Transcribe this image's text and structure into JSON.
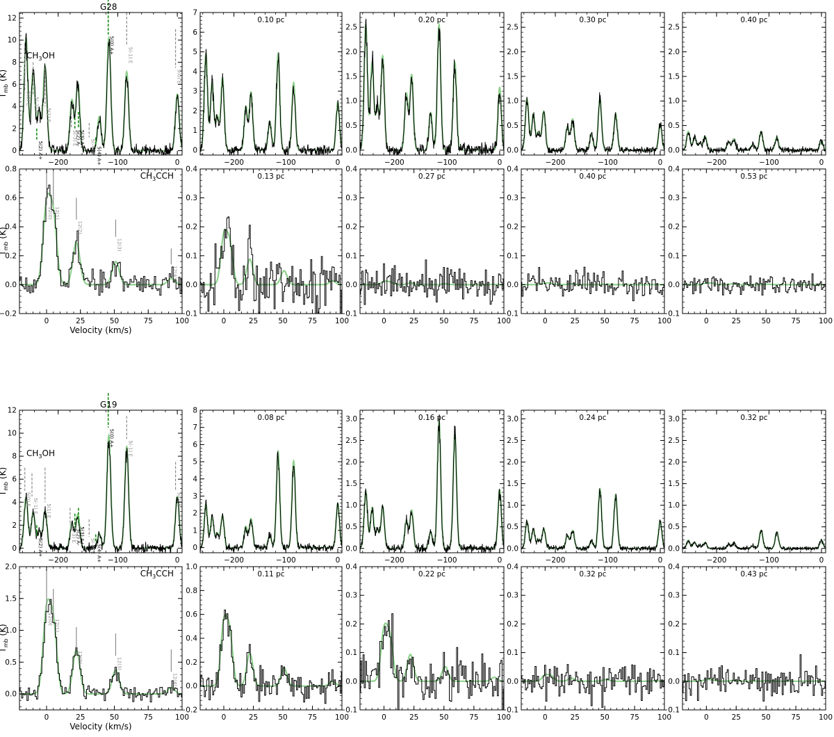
{
  "colors": {
    "obs": "#000000",
    "model": "#4caf50",
    "model_light": "#8fd18f",
    "marker_grey": "#8c8c8c",
    "marker_green": "#1a8c1a"
  },
  "figure": {
    "ylabel": "T_mb (K)",
    "xlabel": "Velocity (km/s)"
  },
  "chart_data": [
    {
      "source": "G28",
      "rows": [
        {
          "type": "line",
          "molecule": "CH3OH",
          "molecule_label": {
            "main": "CH",
            "sub": "3",
            "rest": "OH"
          },
          "xlim": [
            -265,
            8
          ],
          "xticks": [
            -200,
            -100,
            0
          ],
          "lines": [
            [
              -254,
              1.0
            ],
            [
              -242,
              0.7
            ],
            [
              -232,
              0.35
            ],
            [
              -222,
              0.75
            ],
            [
              -177,
              0.45
            ],
            [
              -167,
              0.6
            ],
            [
              -131,
              0.3
            ],
            [
              -115,
              1.0
            ],
            [
              -85,
              0.7
            ],
            [
              0,
              0.5
            ]
          ],
          "panels": [
            {
              "title": "",
              "ylim": [
                -0.4,
                12.5
              ],
              "yticks": [
                0,
                2,
                4,
                6,
                8,
                10,
                12
              ],
              "peak": 10.2,
              "noise": 0.25,
              "markers": [
                {
                  "v": -256,
                  "top": 9.5,
                  "bot": 5.5,
                  "color": "grey",
                  "dashed": true,
                  "text": "5(0) E"
                },
                {
                  "v": -242,
                  "top": 8.0,
                  "bot": 5.0,
                  "color": "grey",
                  "dashed": true,
                  "text": "5(-1) E"
                },
                {
                  "v": -236,
                  "top": 2.0,
                  "bot": 1.0,
                  "color": "green",
                  "dashed": true,
                  "text": "5(2) A+"
                },
                {
                  "v": -222,
                  "top": 7.5,
                  "bot": 4.0,
                  "color": "grey",
                  "dashed": true,
                  "text": "5(1) E"
                },
                {
                  "v": -178,
                  "top": 3.5,
                  "bot": 2.0,
                  "color": "grey",
                  "dashed": true,
                  "text": "5(-3) E"
                },
                {
                  "v": -172,
                  "top": 3.0,
                  "bot": 2.0,
                  "color": "green",
                  "dashed": true,
                  "text": "5(2) A-"
                },
                {
                  "v": -166,
                  "top": 3.5,
                  "bot": 2.0,
                  "color": "green",
                  "dashed": true,
                  "text": "5(3) A+"
                },
                {
                  "v": -148,
                  "top": 2.5,
                  "bot": 1.2,
                  "color": "grey",
                  "dashed": true,
                  "text": "5(-4) E"
                },
                {
                  "v": -137,
                  "top": 1.2,
                  "bot": 0.5,
                  "color": "green",
                  "dashed": true,
                  "text": "5(4) A+"
                },
                {
                  "v": -116,
                  "top": 14.5,
                  "bot": 10.5,
                  "color": "green",
                  "dashed": true,
                  "text": "5(0) A+"
                },
                {
                  "v": -85,
                  "top": 12.5,
                  "bot": 9.5,
                  "color": "grey",
                  "dashed": true,
                  "text": "5(-1) E"
                },
                {
                  "v": -3,
                  "top": 11.0,
                  "bot": 7.5,
                  "color": "grey",
                  "dashed": true,
                  "text": "5(0) E"
                }
              ]
            },
            {
              "title": "0.10 pc",
              "ylim": [
                -0.25,
                7
              ],
              "yticks": [
                0,
                1,
                2,
                3,
                4,
                5,
                6,
                7
              ],
              "peak": 4.9,
              "noise": 0.12
            },
            {
              "title": "0.20 pc",
              "ylim": [
                -0.1,
                2.8
              ],
              "yticks": [
                0,
                0.5,
                1.0,
                1.5,
                2.0,
                2.5
              ],
              "peak": 2.55,
              "noise": 0.07
            },
            {
              "title": "0.30 pc",
              "ylim": [
                -0.1,
                2.8
              ],
              "yticks": [
                0,
                0.5,
                1.0,
                1.5,
                2.0,
                2.5
              ],
              "peak": 1.05,
              "noise": 0.035
            },
            {
              "title": "0.40 pc",
              "ylim": [
                -0.1,
                2.8
              ],
              "yticks": [
                0,
                0.5,
                1.0,
                1.5,
                2.0,
                2.5
              ],
              "peak": 0.38,
              "noise": 0.03
            }
          ]
        },
        {
          "type": "step",
          "molecule": "CH3CCH",
          "molecule_label": {
            "main": "CH",
            "sub": "3",
            "rest": "CCH"
          },
          "xlim": [
            -20,
            100
          ],
          "xticks": [
            0,
            25,
            50,
            75,
            100
          ],
          "lines": [
            [
              0,
              1.0
            ],
            [
              5,
              0.85
            ],
            [
              22,
              0.55
            ],
            [
              51,
              0.3
            ],
            [
              92,
              0.08
            ]
          ],
          "panels": [
            {
              "title": "",
              "ylim": [
                -0.2,
                0.8
              ],
              "yticks": [
                -0.2,
                0.0,
                0.2,
                0.4,
                0.6,
                0.8
              ],
              "peak": 0.53,
              "noise": 0.04,
              "markers": [
                {
                  "v": 0,
                  "top": 0.8,
                  "bot": 0.55,
                  "color": "grey",
                  "dashed": false,
                  "text": "12(0)"
                },
                {
                  "v": 5,
                  "top": 0.8,
                  "bot": 0.55,
                  "color": "grey",
                  "dashed": false,
                  "text": "12(1)"
                },
                {
                  "v": 22,
                  "top": 0.6,
                  "bot": 0.45,
                  "color": "grey",
                  "dashed": false,
                  "text": "12(2)"
                },
                {
                  "v": 51,
                  "top": 0.45,
                  "bot": 0.33,
                  "color": "grey",
                  "dashed": false,
                  "text": "12(3)"
                },
                {
                  "v": 92,
                  "top": 0.25,
                  "bot": 0.14,
                  "color": "grey",
                  "dashed": false,
                  "text": "12(4)"
                }
              ]
            },
            {
              "title": "0.13 pc",
              "ylim": [
                -0.1,
                0.4
              ],
              "yticks": [
                -0.1,
                0.0,
                0.1,
                0.2,
                0.3,
                0.4
              ],
              "peak": 0.16,
              "noise": 0.05
            },
            {
              "title": "0.27 pc",
              "ylim": [
                -0.1,
                0.4
              ],
              "yticks": [
                -0.1,
                0.0,
                0.1,
                0.2,
                0.3,
                0.4
              ],
              "peak": 0.01,
              "noise": 0.03
            },
            {
              "title": "0.40 pc",
              "ylim": [
                -0.1,
                0.4
              ],
              "yticks": [
                -0.1,
                0.0,
                0.1,
                0.2,
                0.3,
                0.4
              ],
              "peak": 0.005,
              "noise": 0.022
            },
            {
              "title": "0.53 pc",
              "ylim": [
                -0.1,
                0.4
              ],
              "yticks": [
                -0.1,
                0.0,
                0.1,
                0.2,
                0.3,
                0.4
              ],
              "peak": 0.005,
              "noise": 0.018
            }
          ]
        }
      ]
    },
    {
      "source": "G19",
      "rows": [
        {
          "type": "line",
          "molecule": "CH3OH",
          "molecule_label": {
            "main": "CH",
            "sub": "3",
            "rest": "OH"
          },
          "xlim": [
            -265,
            8
          ],
          "xticks": [
            -200,
            -100,
            0
          ],
          "lines": [
            [
              -254,
              0.45
            ],
            [
              -242,
              0.32
            ],
            [
              -232,
              0.15
            ],
            [
              -222,
              0.33
            ],
            [
              -177,
              0.22
            ],
            [
              -167,
              0.3
            ],
            [
              -131,
              0.13
            ],
            [
              -115,
              1.0
            ],
            [
              -85,
              0.9
            ],
            [
              0,
              0.46
            ]
          ],
          "panels": [
            {
              "title": "",
              "ylim": [
                -0.4,
                12.0
              ],
              "yticks": [
                0,
                2,
                4,
                6,
                8,
                10,
                12
              ],
              "peak": 9.8,
              "noise": 0.2,
              "markers": [
                {
                  "v": -256,
                  "top": 7.0,
                  "bot": 5.0,
                  "color": "grey",
                  "dashed": true,
                  "text": "5(0) E"
                },
                {
                  "v": -244,
                  "top": 6.5,
                  "bot": 4.5,
                  "color": "grey",
                  "dashed": true,
                  "text": "5(-1) E"
                },
                {
                  "v": -236,
                  "top": 2.0,
                  "bot": 1.0,
                  "color": "green",
                  "dashed": true,
                  "text": "5(2) A+"
                },
                {
                  "v": -222,
                  "top": 7.0,
                  "bot": 4.0,
                  "color": "grey",
                  "dashed": true,
                  "text": "5(1) E"
                },
                {
                  "v": -180,
                  "top": 3.5,
                  "bot": 2.0,
                  "color": "grey",
                  "dashed": true,
                  "text": "5(-3) E"
                },
                {
                  "v": -172,
                  "top": 3.0,
                  "bot": 1.8,
                  "color": "green",
                  "dashed": true,
                  "text": "5(2) A-"
                },
                {
                  "v": -166,
                  "top": 3.5,
                  "bot": 2.0,
                  "color": "green",
                  "dashed": true,
                  "text": "5(3) A+"
                },
                {
                  "v": -148,
                  "top": 2.5,
                  "bot": 1.0,
                  "color": "grey",
                  "dashed": true,
                  "text": "5(-4) E"
                },
                {
                  "v": -137,
                  "top": 1.2,
                  "bot": 0.5,
                  "color": "green",
                  "dashed": true,
                  "text": "5(4) A+"
                },
                {
                  "v": -116,
                  "top": 13.5,
                  "bot": 10.5,
                  "color": "green",
                  "dashed": true,
                  "text": "5(0) A+"
                },
                {
                  "v": -85,
                  "top": 11.5,
                  "bot": 9.5,
                  "color": "grey",
                  "dashed": true,
                  "text": "5(-1) E"
                },
                {
                  "v": -3,
                  "top": 7.5,
                  "bot": 5.0,
                  "color": "grey",
                  "dashed": true,
                  "text": "5(0) E"
                }
              ]
            },
            {
              "title": "0.08 pc",
              "ylim": [
                -0.3,
                8
              ],
              "yticks": [
                0,
                1,
                2,
                3,
                4,
                5,
                6,
                7,
                8
              ],
              "peak": 5.6,
              "noise": 0.1
            },
            {
              "title": "0.16 pc",
              "ylim": [
                -0.1,
                3.2
              ],
              "yticks": [
                0,
                0.5,
                1.0,
                1.5,
                2.0,
                2.5,
                3.0
              ],
              "peak": 2.95,
              "noise": 0.05
            },
            {
              "title": "0.24 pc",
              "ylim": [
                -0.1,
                3.2
              ],
              "yticks": [
                0,
                0.5,
                1.0,
                1.5,
                2.0,
                2.5,
                3.0
              ],
              "peak": 1.38,
              "noise": 0.03
            },
            {
              "title": "0.32 pc",
              "ylim": [
                -0.1,
                3.2
              ],
              "yticks": [
                0,
                0.5,
                1.0,
                1.5,
                2.0,
                2.5,
                3.0
              ],
              "peak": 0.42,
              "noise": 0.02
            }
          ]
        },
        {
          "type": "step",
          "molecule": "CH3CCH",
          "molecule_label": {
            "main": "CH",
            "sub": "3",
            "rest": "CCH"
          },
          "xlim": [
            -20,
            100
          ],
          "xticks": [
            0,
            25,
            50,
            75,
            100
          ],
          "lines": [
            [
              0,
              1.0
            ],
            [
              5,
              0.85
            ],
            [
              22,
              0.55
            ],
            [
              51,
              0.3
            ],
            [
              92,
              0.08
            ]
          ],
          "panels": [
            {
              "title": "",
              "ylim": [
                -0.25,
                2.0
              ],
              "yticks": [
                0.0,
                0.5,
                1.0,
                1.5,
                2.0
              ],
              "peak": 1.25,
              "noise": 0.06,
              "markers": [
                {
                  "v": 0,
                  "top": 1.95,
                  "bot": 1.3,
                  "color": "grey",
                  "dashed": false,
                  "text": "12(0)"
                },
                {
                  "v": 5,
                  "top": 1.65,
                  "bot": 1.2,
                  "color": "grey",
                  "dashed": false,
                  "text": "12(1)"
                },
                {
                  "v": 22,
                  "top": 1.05,
                  "bot": 0.7,
                  "color": "grey",
                  "dashed": false,
                  "text": "12(2)"
                },
                {
                  "v": 51,
                  "top": 0.95,
                  "bot": 0.6,
                  "color": "grey",
                  "dashed": false,
                  "text": "12(3)"
                },
                {
                  "v": 92,
                  "top": 0.7,
                  "bot": 0.35,
                  "color": "grey",
                  "dashed": false,
                  "text": "12(4)"
                }
              ]
            },
            {
              "title": "0.11 pc",
              "ylim": [
                -0.2,
                1.0
              ],
              "yticks": [
                -0.2,
                0.0,
                0.2,
                0.4,
                0.6,
                0.8,
                1.0
              ],
              "peak": 0.5,
              "noise": 0.07
            },
            {
              "title": "0.22 pc",
              "ylim": [
                -0.1,
                0.4
              ],
              "yticks": [
                -0.1,
                0.0,
                0.1,
                0.2,
                0.3,
                0.4
              ],
              "peak": 0.17,
              "noise": 0.04
            },
            {
              "title": "0.32 pc",
              "ylim": [
                -0.1,
                0.4
              ],
              "yticks": [
                -0.1,
                0.0,
                0.1,
                0.2,
                0.3,
                0.4
              ],
              "peak": 0.02,
              "noise": 0.03
            },
            {
              "title": "0.43 pc",
              "ylim": [
                -0.1,
                0.4
              ],
              "yticks": [
                -0.1,
                0.0,
                0.1,
                0.2,
                0.3,
                0.4
              ],
              "peak": 0.005,
              "noise": 0.03
            }
          ]
        }
      ]
    }
  ]
}
